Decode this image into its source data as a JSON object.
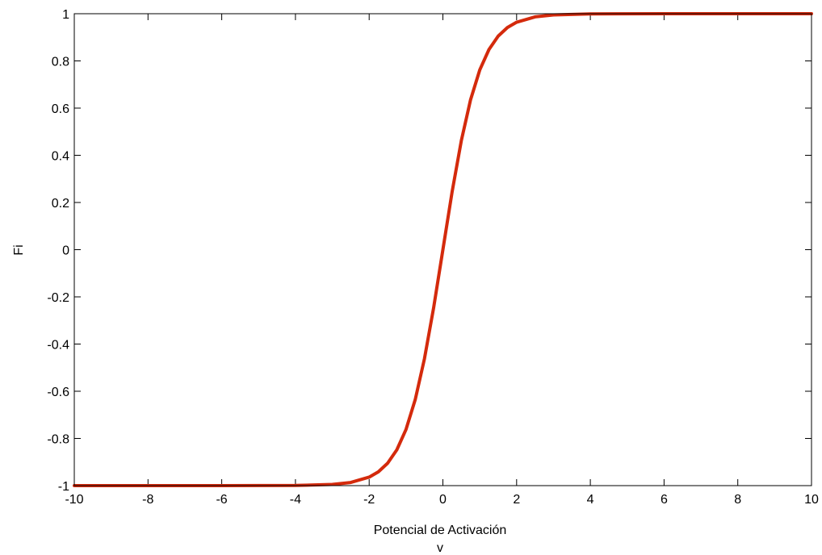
{
  "chart_data": {
    "type": "line",
    "title": "",
    "xlabel": "Potencial de Activación",
    "xlabel_sub": "v",
    "ylabel": "Fi",
    "xlim": [
      -10,
      10
    ],
    "ylim": [
      -1,
      1
    ],
    "grid": false,
    "legend": "none",
    "xticks": [
      -10,
      -8,
      -6,
      -4,
      -2,
      0,
      2,
      4,
      6,
      8,
      10
    ],
    "yticks": [
      -1,
      -0.8,
      -0.6,
      -0.4,
      -0.2,
      0,
      0.2,
      0.4,
      0.6,
      0.8,
      1
    ],
    "xtick_labels": [
      "-10",
      "-8",
      "-6",
      "-4",
      "-2",
      "0",
      "2",
      "4",
      "6",
      "8",
      "10"
    ],
    "ytick_labels": [
      "-1",
      "-0.8",
      "-0.6",
      "-0.4",
      "-0.2",
      "0",
      "0.2",
      "0.4",
      "0.6",
      "0.8",
      "1"
    ],
    "series": [
      {
        "color": "#d42a0c",
        "x": [
          -10,
          -8,
          -6,
          -4,
          -3,
          -2.5,
          -2,
          -1.75,
          -1.5,
          -1.25,
          -1,
          -0.75,
          -0.5,
          -0.25,
          0,
          0.25,
          0.5,
          0.75,
          1,
          1.25,
          1.5,
          1.75,
          2,
          2.5,
          3,
          4,
          6,
          8,
          10
        ],
        "y": [
          -1,
          -1,
          -1,
          -0.9993,
          -0.995,
          -0.9866,
          -0.964,
          -0.9414,
          -0.9051,
          -0.8483,
          -0.7616,
          -0.6351,
          -0.4621,
          -0.2449,
          0,
          0.2449,
          0.4621,
          0.6351,
          0.7616,
          0.8483,
          0.9051,
          0.9414,
          0.964,
          0.9866,
          0.995,
          0.9993,
          1,
          1,
          1
        ]
      }
    ]
  }
}
